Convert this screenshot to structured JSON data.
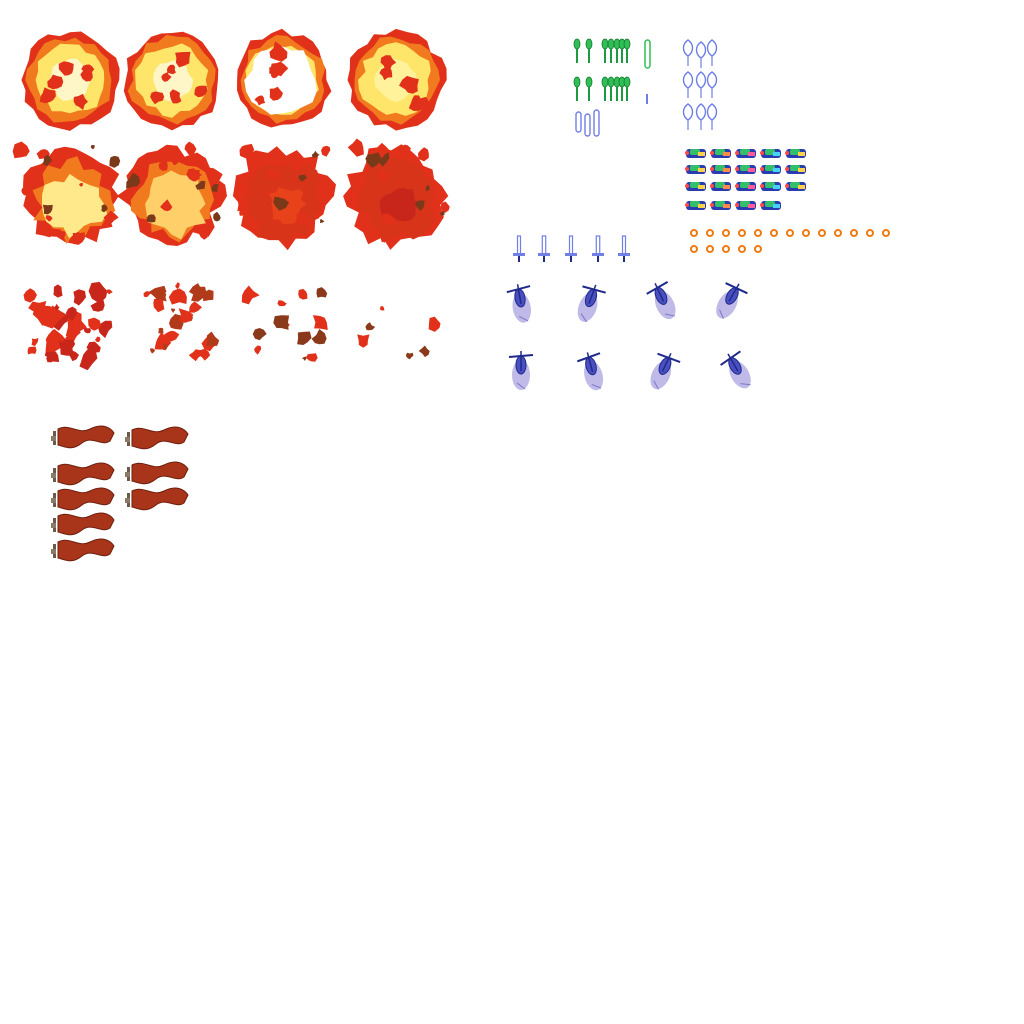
{
  "sheet": {
    "explosion_frames": [
      {
        "name": "explosion-frame-1",
        "phase": "fireball",
        "core": "#fff6c8"
      },
      {
        "name": "explosion-frame-2",
        "phase": "fireball",
        "core": "#fff6c8"
      },
      {
        "name": "explosion-frame-3",
        "phase": "fireball",
        "core": "#ffffff"
      },
      {
        "name": "explosion-frame-4",
        "phase": "fireball",
        "core": "#fff29a"
      },
      {
        "name": "explosion-frame-5",
        "phase": "burst",
        "core": "#ffe98a"
      },
      {
        "name": "explosion-frame-6",
        "phase": "burst",
        "core": "#ffd06a"
      },
      {
        "name": "explosion-frame-7",
        "phase": "burst",
        "core": "#e8421a"
      },
      {
        "name": "explosion-frame-8",
        "phase": "burst",
        "core": "#c8261a"
      },
      {
        "name": "explosion-frame-9",
        "phase": "debris",
        "core": "#c8261a"
      },
      {
        "name": "explosion-frame-10",
        "phase": "debris",
        "core": "#b03a1a"
      },
      {
        "name": "explosion-frame-11",
        "phase": "debris",
        "core": "#8a3a1a"
      },
      {
        "name": "explosion-frame-12",
        "phase": "debris",
        "core": "#8a3a1a"
      }
    ],
    "palette": {
      "fire_outer": "#e2311a",
      "fire_mid": "#f27a1e",
      "fire_inner": "#ffe56a",
      "fire_core": "#fffbe0",
      "flag_main": "#a8341a",
      "flag_dark": "#6e1f0e",
      "pole": "#6b5a4a",
      "green_shot": "#2fbf55",
      "blue_outline": "#6f7fe6",
      "navy": "#1f2a8a",
      "lavender": "#a9a3e0",
      "ring": "#f07a10"
    },
    "icons": {
      "explosion": "explosion-icon",
      "flag": "flag-icon",
      "green_missile": "missile-icon",
      "blue_droplet": "droplet-icon",
      "gem_ship": "ship-icon",
      "ring_bullet": "ring-icon",
      "sword": "sword-icon",
      "helicopter": "helicopter-icon"
    }
  }
}
